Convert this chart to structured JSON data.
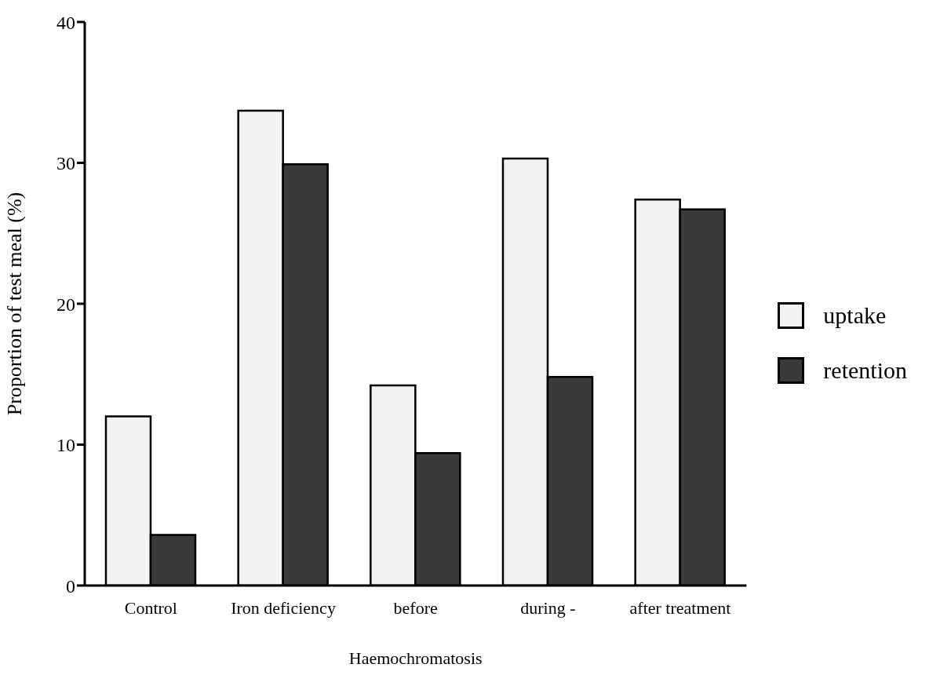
{
  "chart_data": {
    "type": "bar",
    "xlabel": "Haemochromatosis",
    "ylabel": "Proportion of test meal (%)",
    "categories": [
      "Control",
      "Iron deficiency",
      "before",
      "during -",
      "after treatment"
    ],
    "series": [
      {
        "name": "uptake",
        "color": "#f2f2f2",
        "values": [
          12,
          33.7,
          14.2,
          30.3,
          27.4
        ]
      },
      {
        "name": "retention",
        "color": "#3a3a3a",
        "values": [
          3.6,
          29.9,
          9.4,
          14.8,
          26.7
        ]
      }
    ],
    "ylim": [
      0,
      40
    ],
    "yticks": [
      0,
      10,
      20,
      30,
      40
    ],
    "legend": "right",
    "grid": false
  }
}
